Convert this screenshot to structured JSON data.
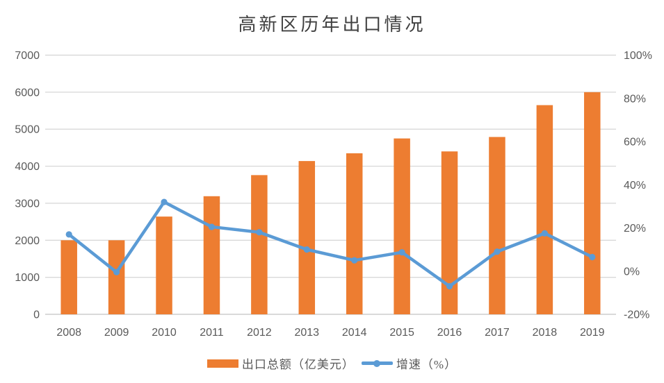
{
  "chart": {
    "title": "高新区历年出口情况",
    "legend": [
      {
        "label": "出口总额（亿美元）",
        "marker": "bar-swatch",
        "color": "#ED7D31"
      },
      {
        "label": "增速（%）",
        "marker": "line-with-dot",
        "color": "#5B9BD5"
      }
    ]
  },
  "chart_data": {
    "type": "bar",
    "subtype": "combo-bar-line-dual-axis",
    "title": "高新区历年出口情况",
    "categories": [
      "2008",
      "2009",
      "2010",
      "2011",
      "2012",
      "2013",
      "2014",
      "2015",
      "2016",
      "2017",
      "2018",
      "2019"
    ],
    "series": [
      {
        "name": "出口总额（亿美元）",
        "type": "bar",
        "axis": "left",
        "color": "#ED7D31",
        "values": [
          2000,
          2000,
          2640,
          3190,
          3760,
          4140,
          4350,
          4750,
          4400,
          4790,
          5650,
          6000
        ]
      },
      {
        "name": "增速（%）",
        "type": "line",
        "axis": "right",
        "color": "#5B9BD5",
        "marker": "circle",
        "values": [
          17,
          -0.5,
          32,
          20.5,
          18,
          10,
          5,
          8.7,
          -7,
          9,
          17.5,
          6.5
        ]
      }
    ],
    "left_axis": {
      "min": 0,
      "max": 7000,
      "step": 1000,
      "ticks": [
        "0",
        "1000",
        "2000",
        "3000",
        "4000",
        "5000",
        "6000",
        "7000"
      ]
    },
    "right_axis": {
      "min": -20,
      "max": 100,
      "step": 20,
      "ticks": [
        "-20%",
        "0%",
        "20%",
        "40%",
        "60%",
        "80%",
        "100%"
      ]
    },
    "grid": "horizontal",
    "legend_position": "bottom",
    "colors": {
      "bar": "#ED7D31",
      "line": "#5B9BD5",
      "grid": "#D9D9D9",
      "axis_text": "#595959",
      "title_text": "#404040",
      "background": "#ffffff"
    }
  }
}
